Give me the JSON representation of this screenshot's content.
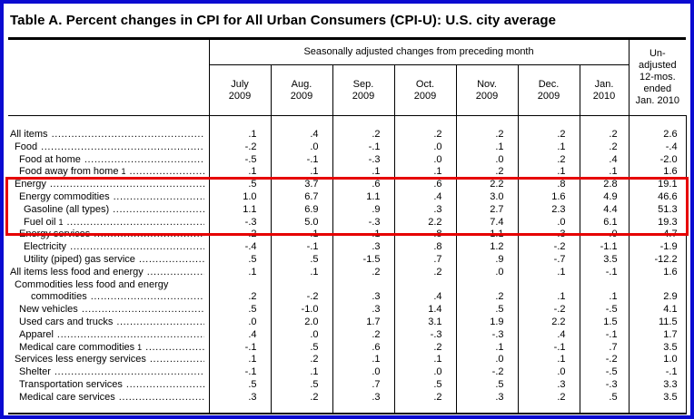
{
  "title": "Table A. Percent changes in CPI for All Urban Consumers (CPI-U): U.S. city average",
  "highlight_color": "#e60000",
  "frame_border_color": "#0b0bd1",
  "table": {
    "group_header": "Seasonally adjusted changes from preceding month",
    "unadjusted_header_lines": [
      "Un-",
      "adjusted",
      "12-mos.",
      "ended",
      "Jan. 2010"
    ],
    "month_columns": [
      {
        "line1": "July",
        "line2": "2009"
      },
      {
        "line1": "Aug.",
        "line2": "2009"
      },
      {
        "line1": "Sep.",
        "line2": "2009"
      },
      {
        "line1": "Oct.",
        "line2": "2009"
      },
      {
        "line1": "Nov.",
        "line2": "2009"
      },
      {
        "line1": "Dec.",
        "line2": "2009"
      },
      {
        "line1": "Jan.",
        "line2": "2010"
      }
    ],
    "rows": [
      {
        "label": "All items",
        "indent": 0,
        "values": [
          ".1",
          ".4",
          ".2",
          ".2",
          ".2",
          ".2",
          ".2",
          "2.6"
        ]
      },
      {
        "label": "Food",
        "indent": 1,
        "values": [
          "-.2",
          ".0",
          "-.1",
          ".0",
          ".1",
          ".1",
          ".2",
          "-.4"
        ]
      },
      {
        "label": "Food at home",
        "indent": 2,
        "values": [
          "-.5",
          "-.1",
          "-.3",
          ".0",
          ".0",
          ".2",
          ".4",
          "-2.0"
        ]
      },
      {
        "label": "Food away from home",
        "footnote": "1",
        "indent": 2,
        "values": [
          ".1",
          ".1",
          ".1",
          ".1",
          ".2",
          ".1",
          ".1",
          "1.6"
        ]
      },
      {
        "label": "Energy",
        "indent": 1,
        "highlight": true,
        "values": [
          ".5",
          "3.7",
          ".6",
          ".6",
          "2.2",
          ".8",
          "2.8",
          "19.1"
        ]
      },
      {
        "label": "Energy commodities",
        "indent": 2,
        "highlight": true,
        "values": [
          "1.0",
          "6.7",
          "1.1",
          ".4",
          "3.0",
          "1.6",
          "4.9",
          "46.6"
        ]
      },
      {
        "label": "Gasoline (all types)",
        "indent": 3,
        "highlight": true,
        "values": [
          "1.1",
          "6.9",
          ".9",
          ".3",
          "2.7",
          "2.3",
          "4.4",
          "51.3"
        ]
      },
      {
        "label": "Fuel oil",
        "footnote": "1",
        "indent": 3,
        "highlight": true,
        "values": [
          "-.3",
          "5.0",
          "-.3",
          "2.2",
          "7.4",
          ".0",
          "6.1",
          "19.3"
        ]
      },
      {
        "label": "Energy services",
        "indent": 2,
        "values": [
          "-.2",
          ".1",
          "-.1",
          ".8",
          "1.1",
          "-.3",
          ".0",
          "-4.7"
        ]
      },
      {
        "label": "Electricity",
        "indent": 3,
        "values": [
          "-.4",
          "-.1",
          ".3",
          ".8",
          "1.2",
          "-.2",
          "-1.1",
          "-1.9"
        ]
      },
      {
        "label": "Utility (piped) gas service",
        "indent": 3,
        "values": [
          ".5",
          ".5",
          "-1.5",
          ".7",
          ".9",
          "-.7",
          "3.5",
          "-12.2"
        ]
      },
      {
        "label": "All items less food and energy",
        "indent": 0,
        "values": [
          ".1",
          ".1",
          ".2",
          ".2",
          ".0",
          ".1",
          "-.1",
          "1.6"
        ]
      },
      {
        "label": "Commodities less food and energy",
        "label2": "commodities",
        "indent": 1,
        "values": [
          ".2",
          "-.2",
          ".3",
          ".4",
          ".2",
          ".1",
          ".1",
          "2.9"
        ]
      },
      {
        "label": "New vehicles",
        "indent": 2,
        "values": [
          ".5",
          "-1.0",
          ".3",
          "1.4",
          ".5",
          "-.2",
          "-.5",
          "4.1"
        ]
      },
      {
        "label": "Used cars and trucks",
        "indent": 2,
        "values": [
          ".0",
          "2.0",
          "1.7",
          "3.1",
          "1.9",
          "2.2",
          "1.5",
          "11.5"
        ]
      },
      {
        "label": "Apparel",
        "indent": 2,
        "values": [
          ".4",
          ".0",
          ".2",
          "-.3",
          "-.3",
          ".4",
          "-.1",
          "1.7"
        ]
      },
      {
        "label": "Medical care commodities",
        "footnote": "1",
        "indent": 2,
        "values": [
          "-.1",
          ".5",
          ".6",
          ".2",
          ".1",
          "-.1",
          ".7",
          "3.5"
        ]
      },
      {
        "label": "Services less energy services",
        "indent": 1,
        "values": [
          ".1",
          ".2",
          ".1",
          ".1",
          ".0",
          ".1",
          "-.2",
          "1.0"
        ]
      },
      {
        "label": "Shelter",
        "indent": 2,
        "values": [
          "-.1",
          ".1",
          ".0",
          ".0",
          "-.2",
          ".0",
          "-.5",
          "-.1"
        ]
      },
      {
        "label": "Transportation services",
        "indent": 2,
        "values": [
          ".5",
          ".5",
          ".7",
          ".5",
          ".5",
          ".3",
          "-.3",
          "3.3"
        ]
      },
      {
        "label": "Medical care services",
        "indent": 2,
        "values": [
          ".3",
          ".2",
          ".3",
          ".2",
          ".3",
          ".2",
          ".5",
          "3.5"
        ]
      }
    ]
  }
}
